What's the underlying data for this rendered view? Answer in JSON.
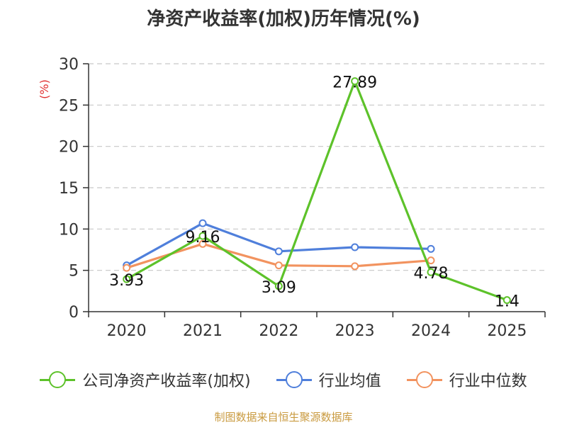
{
  "chart_data": {
    "type": "line",
    "title": "净资产收益率(加权)历年情况(%)",
    "ylabel": "(%)",
    "xlabel": "",
    "categories": [
      "2020",
      "2021",
      "2022",
      "2023",
      "2024",
      "2025"
    ],
    "ylim": [
      0,
      30
    ],
    "yticks": [
      0,
      5,
      10,
      15,
      20,
      25,
      30
    ],
    "grid": true,
    "legend_position": "bottom",
    "series": [
      {
        "name": "公司净资产收益率(加权)",
        "color": "#5dc22a",
        "values": [
          3.93,
          9.16,
          3.09,
          27.89,
          4.78,
          1.4
        ],
        "labels": [
          "3.93",
          "9.16",
          "3.09",
          "27.89",
          "4.78",
          "1.4"
        ]
      },
      {
        "name": "行业均值",
        "color": "#4f7fdb",
        "values": [
          5.6,
          10.7,
          7.3,
          7.8,
          7.6,
          null
        ]
      },
      {
        "name": "行业中位数",
        "color": "#f2935f",
        "values": [
          5.3,
          8.2,
          5.6,
          5.5,
          6.2,
          null
        ]
      }
    ]
  },
  "source": {
    "text": "制图数据来自恒生聚源数据库",
    "color": "#c99a3f"
  },
  "ylabel_color": "#e03030"
}
